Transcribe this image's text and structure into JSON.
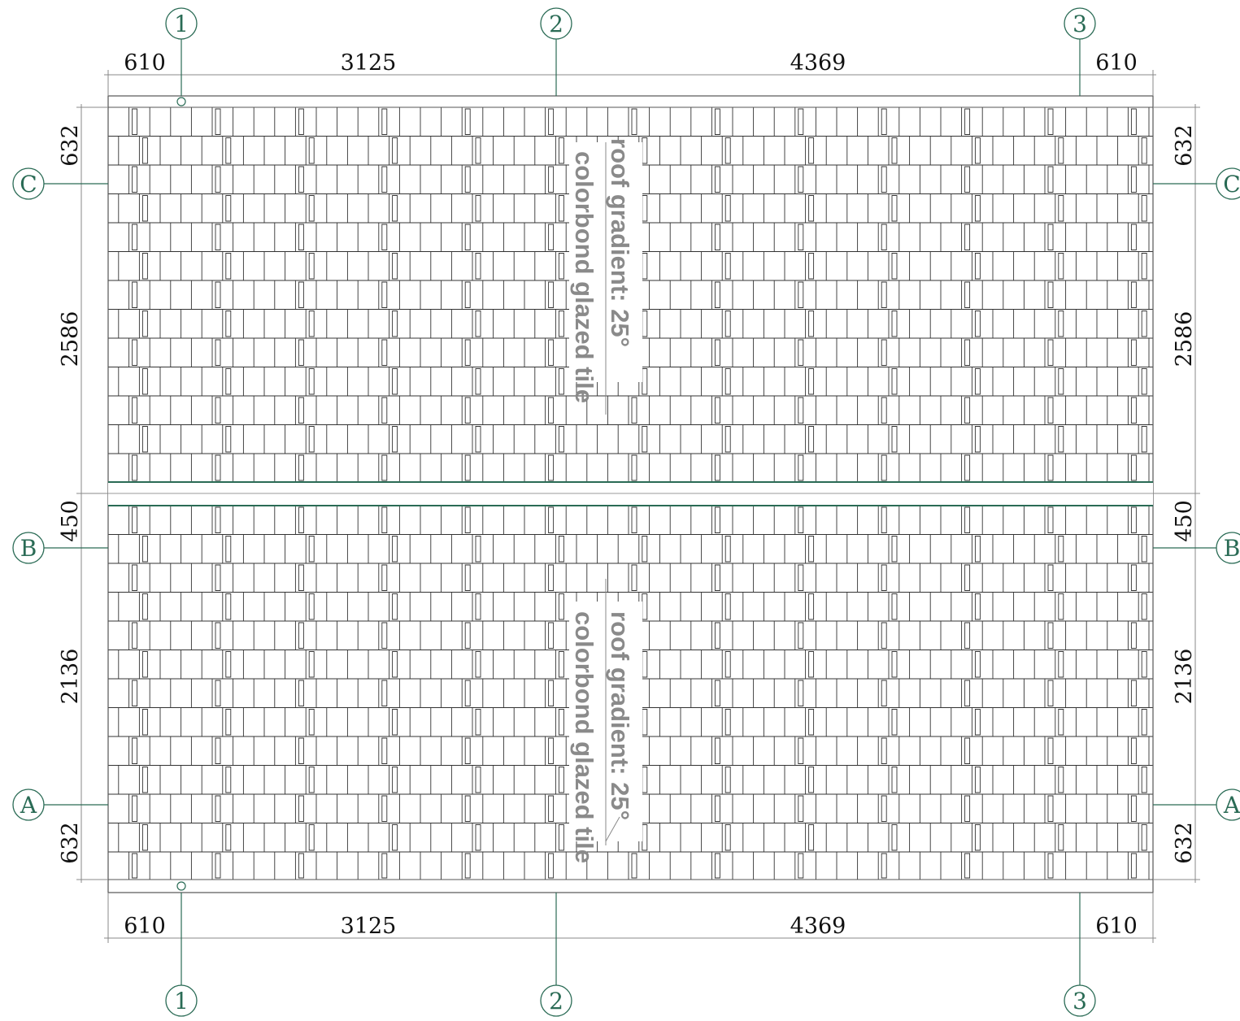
{
  "drawing": {
    "grid_bubbles_x": [
      "1",
      "2",
      "3"
    ],
    "grid_bubbles_y": [
      "C",
      "B",
      "A"
    ],
    "dims_top": [
      "610",
      "3125",
      "4369",
      "610"
    ],
    "dims_bottom": [
      "610",
      "3125",
      "4369",
      "610"
    ],
    "dims_left": [
      "632",
      "2586",
      "450",
      "2136",
      "632"
    ],
    "dims_right": [
      "632",
      "2586",
      "450",
      "2136",
      "632"
    ],
    "upper_note": {
      "gradient": "roof gradient:  25°",
      "material": "colorbond glazed tile"
    },
    "lower_note": {
      "gradient": "roof gradient:  25°",
      "material": "colorbond glazed tile"
    },
    "colors": {
      "grid": "#2a6b55",
      "line": "#333333",
      "dim_line": "#888888",
      "ridge": "#2a6b55",
      "note": "#8a8a8a"
    }
  }
}
